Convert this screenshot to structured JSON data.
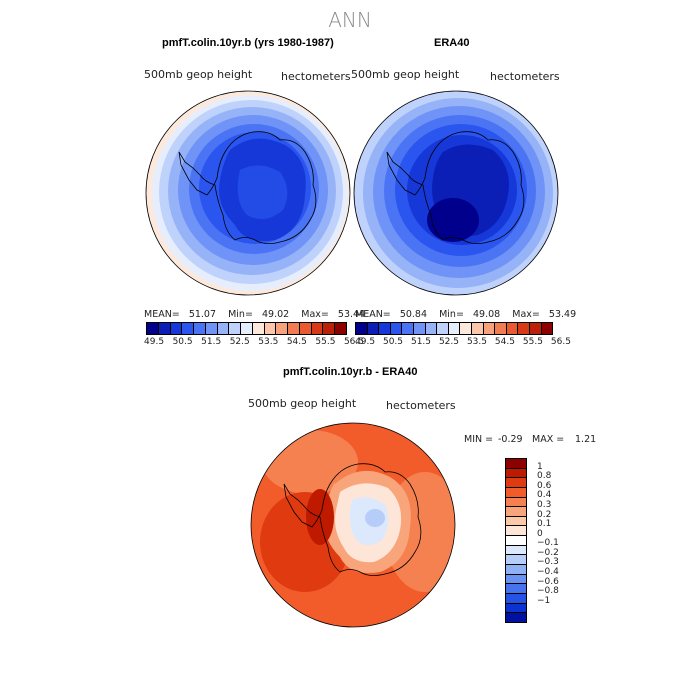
{
  "main_title": "ANN",
  "panels": [
    {
      "title": "pmfT.colin.10yr.b (yrs 1980-1987)",
      "variable": "500mb geop height",
      "units": "hectometers",
      "stats": "MEAN=   51.07    Min=   49.02    Max=   53.44"
    },
    {
      "title": "ERA40",
      "variable": "500mb geop height",
      "units": "hectometers",
      "stats": "MEAN=   50.84    Min=   49.08    Max=   53.49"
    }
  ],
  "top_colorbar": {
    "colors": [
      "#00008c",
      "#0b1fb6",
      "#1638d8",
      "#2a55ee",
      "#4b74f4",
      "#6f93f6",
      "#97b3f8",
      "#bfd2fb",
      "#e6eefd",
      "#fde9dc",
      "#fbc6aa",
      "#f8a27c",
      "#f37d52",
      "#ea5a30",
      "#d83a18",
      "#bb2008",
      "#8c0000"
    ],
    "ticks": [
      "49.5",
      "50.5",
      "51.5",
      "52.5",
      "53.5",
      "54.5",
      "55.5",
      "56.5"
    ]
  },
  "diff_panel": {
    "title": "pmfT.colin.10yr.b - ERA40",
    "variable": "500mb geop height",
    "units": "hectometers",
    "min_label": "MIN =",
    "min_value": "-0.29",
    "max_label": "MAX =",
    "max_value": "1.21"
  },
  "diff_colorbar": {
    "colors": [
      "#8c0000",
      "#bf1a00",
      "#e03a10",
      "#f25c2a",
      "#f68150",
      "#f9a57c",
      "#fbc8a8",
      "#fde6d8",
      "#ffffff",
      "#dce8fb",
      "#b5cdf8",
      "#8eb0f5",
      "#6a92f2",
      "#4673ee",
      "#2453e6",
      "#0a33cf",
      "#0010a0"
    ],
    "labels": [
      "1",
      "0.8",
      "0.6",
      "0.4",
      "0.3",
      "0.2",
      "0.1",
      "0",
      "−0.1",
      "−0.2",
      "−0.3",
      "−0.4",
      "−0.6",
      "−0.8",
      "−1"
    ]
  }
}
